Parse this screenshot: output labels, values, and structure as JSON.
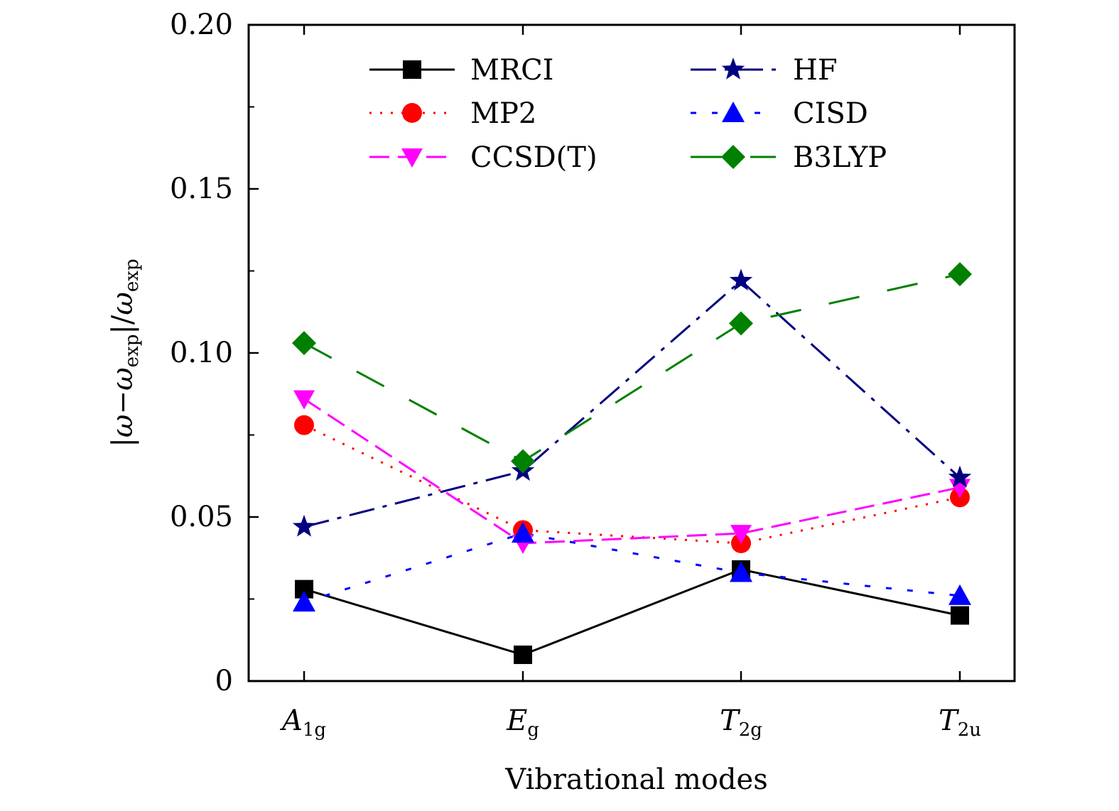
{
  "chart_data": {
    "type": "line",
    "categories": [
      {
        "main": "A",
        "sub": "1g",
        "italic_main": true
      },
      {
        "main": "E",
        "sub": "g",
        "italic_main": true
      },
      {
        "main": "T",
        "sub": "2g",
        "italic_main": true
      },
      {
        "main": "T",
        "sub": "2u",
        "italic_main": true
      }
    ],
    "xlabel": "Vibrational modes",
    "ylabel": "|ω−ω_exp|/ω_exp",
    "ylabel_parts": {
      "bar_open": "|",
      "omega1": "ω",
      "minus": "−",
      "omega2": "ω",
      "sub1": "exp",
      "bar_close": "|/",
      "omega3": "ω",
      "sub2": "exp"
    },
    "ylim": [
      0,
      0.2
    ],
    "yticks": [
      {
        "value": 0,
        "label": "0"
      },
      {
        "value": 0.05,
        "label": "0.05"
      },
      {
        "value": 0.1,
        "label": "0.10"
      },
      {
        "value": 0.15,
        "label": "0.15"
      },
      {
        "value": 0.2,
        "label": "0.20"
      }
    ],
    "legend_position": "top",
    "series": [
      {
        "name": "MRCI",
        "values": [
          0.028,
          0.008,
          0.034,
          0.02
        ],
        "color": "#000000",
        "marker": "square",
        "dash": "solid"
      },
      {
        "name": "MP2",
        "values": [
          0.078,
          0.046,
          0.042,
          0.056
        ],
        "color": "#ff0000",
        "marker": "circle",
        "dash": "dot"
      },
      {
        "name": "CCSD(T)",
        "values": [
          0.086,
          0.042,
          0.045,
          0.059
        ],
        "color": "#ff00ff",
        "marker": "triangle-down",
        "dash": "dash"
      },
      {
        "name": "HF",
        "values": [
          0.047,
          0.064,
          0.122,
          0.062
        ],
        "color": "#000080",
        "marker": "star",
        "dash": "dashdot"
      },
      {
        "name": "CISD",
        "values": [
          0.024,
          0.045,
          0.033,
          0.026
        ],
        "color": "#0000ff",
        "marker": "triangle-up",
        "dash": "shortdash"
      },
      {
        "name": "B3LYP",
        "values": [
          0.103,
          0.067,
          0.109,
          0.124
        ],
        "color": "#008000",
        "marker": "diamond",
        "dash": "longdash"
      }
    ]
  }
}
